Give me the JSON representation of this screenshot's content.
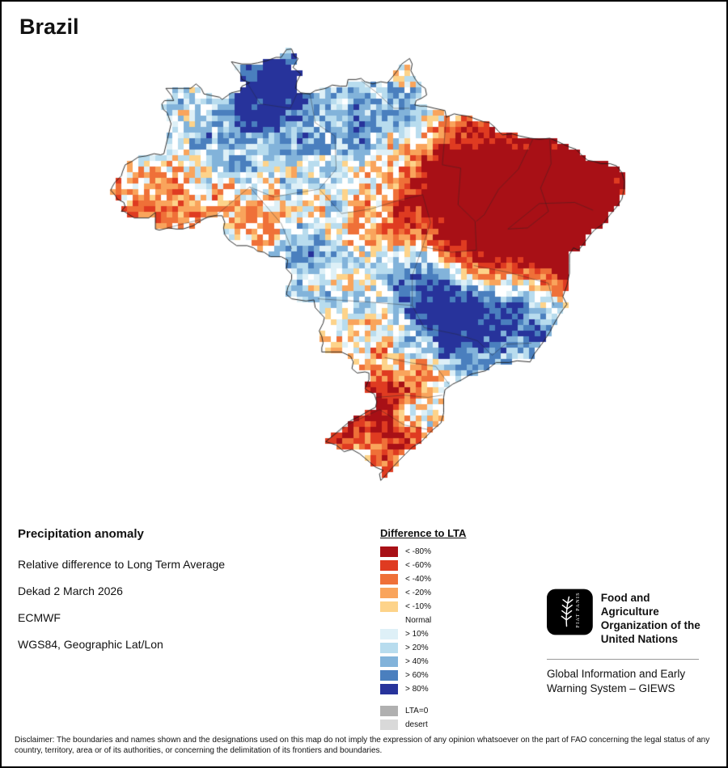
{
  "page": {
    "title": "Brazil"
  },
  "info": {
    "heading": "Precipitation anomaly",
    "lines": [
      "Relative difference to Long Term Average",
      "Dekad 2 March 2026",
      "ECMWF",
      "WGS84, Geographic Lat/Lon"
    ]
  },
  "legend": {
    "title": "Difference to LTA",
    "items": [
      {
        "label": "< -80%",
        "color": "#a81016"
      },
      {
        "label": "< -60%",
        "color": "#df3b21"
      },
      {
        "label": "< -40%",
        "color": "#ef7038"
      },
      {
        "label": "< -20%",
        "color": "#f9a45c"
      },
      {
        "label": "< -10%",
        "color": "#fdd38a"
      },
      {
        "label": "Normal",
        "color": "#ffffff"
      },
      {
        "label": "> 10%",
        "color": "#def0f7"
      },
      {
        "label": "> 20%",
        "color": "#b8dcee"
      },
      {
        "label": "> 40%",
        "color": "#82b3da"
      },
      {
        "label": "> 60%",
        "color": "#4a7fbe"
      },
      {
        "label": "> 80%",
        "color": "#27339b"
      },
      {
        "label": "LTA=0",
        "color": "#b0b0b0",
        "gap_before": true
      },
      {
        "label": "desert",
        "color": "#d9d9d9"
      }
    ]
  },
  "footer": {
    "org_lines": [
      "Food and Agriculture",
      "Organization of the",
      "United Nations"
    ],
    "giews_lines": [
      "Global Information and Early",
      "Warning System – GIEWS"
    ],
    "logo_motto": "FIAT PANIS"
  },
  "disclaimer": "Disclaimer: The boundaries and names shown and the designations used on this map do not imply the expression of any opinion whatsoever on the part of FAO concerning the legal status of any country, territory, area or of its authorities, or concerning the delimitation of its frontiers and boundaries.",
  "map": {
    "region": "Brazil",
    "cell_size": 7,
    "noise": {
      "cell_amplitude": 0.95,
      "patch_amplitude": 0.55
    },
    "class_thresholds": [
      -2.3,
      -1.55,
      -0.95,
      -0.5,
      -0.24,
      0.24,
      0.5,
      0.95,
      1.55,
      2.3
    ],
    "anomaly_pattern": [
      {
        "lon": -60.8,
        "lat": 2.6,
        "radius": 2.2,
        "intensity": 3.4
      },
      {
        "lon": -62.5,
        "lat": -0.6,
        "radius": 3.0,
        "intensity": 1.5
      },
      {
        "lon": -66.5,
        "lat": -2.0,
        "radius": 3.5,
        "intensity": 0.6
      },
      {
        "lon": -54.5,
        "lat": -2.5,
        "radius": 2.4,
        "intensity": 1.2
      },
      {
        "lon": -57.2,
        "lat": -5.8,
        "radius": 2.6,
        "intensity": 0.8
      },
      {
        "lon": -70.6,
        "lat": -8.6,
        "radius": 2.6,
        "intensity": -1.2
      },
      {
        "lon": -64.0,
        "lat": -11.8,
        "radius": 2.6,
        "intensity": -0.9
      },
      {
        "lon": -59.5,
        "lat": -13.5,
        "radius": 2.2,
        "intensity": 1.2
      },
      {
        "lon": -41.5,
        "lat": -9.0,
        "radius": 4.6,
        "intensity": -3.6
      },
      {
        "lon": -37.6,
        "lat": -6.8,
        "radius": 3.0,
        "intensity": -2.6
      },
      {
        "lon": -44.6,
        "lat": -5.0,
        "radius": 3.0,
        "intensity": -1.6
      },
      {
        "lon": -47.6,
        "lat": -10.5,
        "radius": 3.4,
        "intensity": -1.5
      },
      {
        "lon": -44.4,
        "lat": -13.6,
        "radius": 3.4,
        "intensity": -1.8
      },
      {
        "lon": -51.5,
        "lat": -7.0,
        "radius": 3.0,
        "intensity": -0.9
      },
      {
        "lon": -46.5,
        "lat": -7.5,
        "radius": 2.4,
        "intensity": -1.0
      },
      {
        "lon": -47.4,
        "lat": -19.6,
        "radius": 3.2,
        "intensity": 3.0
      },
      {
        "lon": -44.0,
        "lat": -16.6,
        "radius": 2.8,
        "intensity": 1.6
      },
      {
        "lon": -50.6,
        "lat": -15.5,
        "radius": 2.8,
        "intensity": 1.3
      },
      {
        "lon": -49.0,
        "lat": -17.0,
        "radius": 2.0,
        "intensity": 1.0
      },
      {
        "lon": -41.2,
        "lat": -20.2,
        "radius": 2.0,
        "intensity": 1.3
      },
      {
        "lon": -55.4,
        "lat": -27.4,
        "radius": 3.0,
        "intensity": -2.3
      },
      {
        "lon": -52.4,
        "lat": -30.4,
        "radius": 2.6,
        "intensity": -1.6
      },
      {
        "lon": -50.8,
        "lat": -24.2,
        "radius": 2.2,
        "intensity": -1.0
      },
      {
        "lon": -54.0,
        "lat": -30.1,
        "radius": 1.2,
        "intensity": 1.8
      },
      {
        "lon": -49.9,
        "lat": -27.7,
        "radius": 1.4,
        "intensity": 1.4
      },
      {
        "lon": -52.3,
        "lat": -19.2,
        "radius": 2.6,
        "intensity": -0.5
      },
      {
        "lon": -51.0,
        "lat": 0.6,
        "radius": 2.0,
        "intensity": 1.1
      },
      {
        "lon": -48.2,
        "lat": -3.6,
        "radius": 2.0,
        "intensity": -0.6
      },
      {
        "lon": -38.2,
        "lat": -12.6,
        "radius": 2.2,
        "intensity": -2.0
      }
    ]
  }
}
